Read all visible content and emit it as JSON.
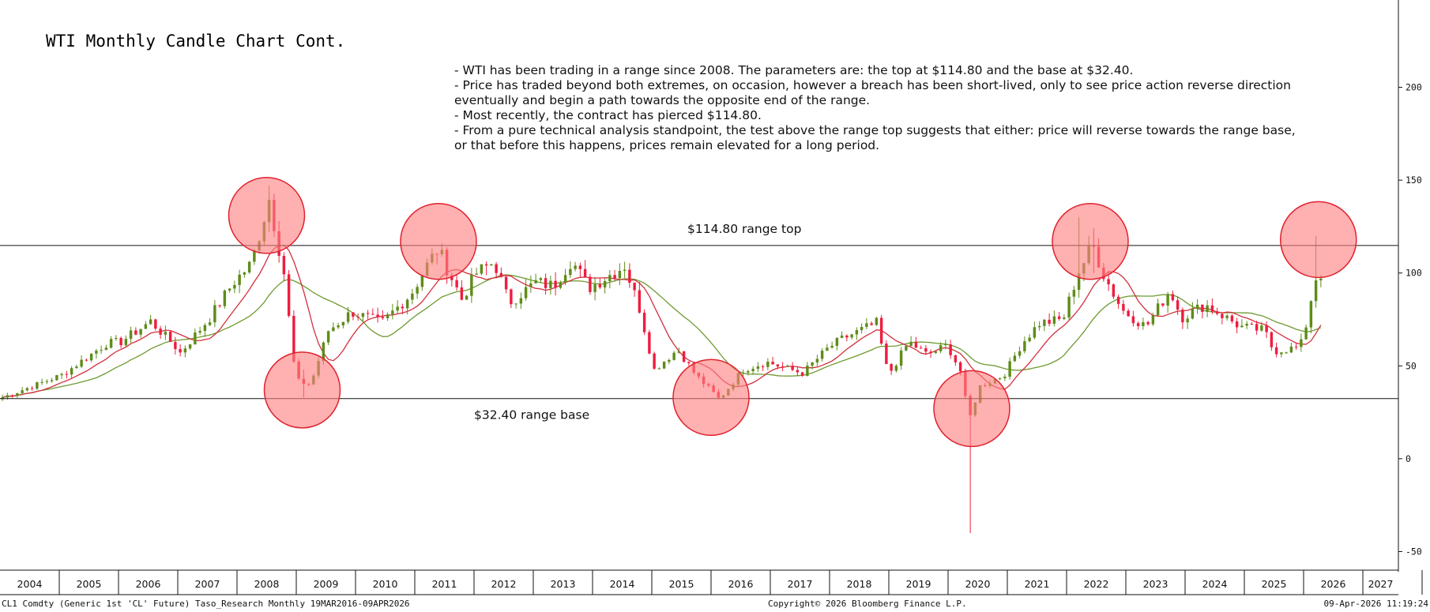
{
  "title": "WTI Monthly Candle Chart Cont.",
  "notes": [
    "- WTI has been trading in a range since 2008. The parameters are: the top at $114.80 and the base at $32.40.",
    "- Price has traded beyond both extremes, on occasion, however a breach has been short-lived, only to see price action reverse direction eventually and begin a path towards the opposite end of the range.",
    "- Most recently, the contract has pierced $114.80.",
    "- From a pure technical analysis standpoint, the test above the range top suggests that either: price will reverse towards the range base, or that before this happens, prices remain elevated for a long period."
  ],
  "footer": {
    "left": "CL1 Comdty (Generic 1st 'CL' Future) Taso_Research Monthly 19MAR2016-09APR2026",
    "center": "Copyright© 2026 Bloomberg Finance L.P.",
    "right": "09-Apr-2026 11:19:24"
  },
  "colors": {
    "up": "#5e8c19",
    "down": "#ee1d3f",
    "ma_fast": "#d2303e",
    "ma_slow": "#6f9a31",
    "circle_fill": "#ff7f7f",
    "circle_stroke": "#e0222f"
  },
  "chart_data": {
    "type": "candlestick",
    "y_ticks": [
      200,
      150,
      100,
      50,
      0,
      -50
    ],
    "ylim": [
      -60,
      247
    ],
    "x_years": [
      "2004",
      "2005",
      "2006",
      "2007",
      "2008",
      "2009",
      "2010",
      "2011",
      "2012",
      "2013",
      "2014",
      "2015",
      "2016",
      "2017",
      "2018",
      "2019",
      "2020",
      "2021",
      "2022",
      "2023",
      "2024",
      "2025",
      "2026",
      "2027"
    ],
    "xlim": [
      2004.0,
      2027.6
    ],
    "levels": [
      {
        "value": 114.8,
        "label": "$114.80 range top"
      },
      {
        "value": 32.4,
        "label": "$32.40 range base"
      }
    ],
    "highlights": [
      {
        "x": 2008.5,
        "y": 131
      },
      {
        "x": 2009.1,
        "y": 37
      },
      {
        "x": 2011.4,
        "y": 117
      },
      {
        "x": 2016.0,
        "y": 33
      },
      {
        "x": 2020.4,
        "y": 27
      },
      {
        "x": 2022.4,
        "y": 117
      },
      {
        "x": 2026.25,
        "y": 118
      }
    ],
    "anchors": [
      [
        2004.0,
        33
      ],
      [
        2004.5,
        39
      ],
      [
        2005.0,
        45
      ],
      [
        2005.75,
        62
      ],
      [
        2006.0,
        63
      ],
      [
        2006.5,
        74
      ],
      [
        2006.9,
        61
      ],
      [
        2007.0,
        57
      ],
      [
        2007.5,
        76
      ],
      [
        2007.9,
        95
      ],
      [
        2008.2,
        105
      ],
      [
        2008.5,
        140
      ],
      [
        2008.75,
        100
      ],
      [
        2008.95,
        42
      ],
      [
        2009.2,
        40
      ],
      [
        2009.5,
        69
      ],
      [
        2009.9,
        79
      ],
      [
        2010.4,
        73
      ],
      [
        2010.9,
        89
      ],
      [
        2011.2,
        106
      ],
      [
        2011.35,
        113
      ],
      [
        2011.75,
        86
      ],
      [
        2012.0,
        100
      ],
      [
        2012.3,
        106
      ],
      [
        2012.55,
        84
      ],
      [
        2013.0,
        95
      ],
      [
        2013.3,
        93
      ],
      [
        2013.6,
        107
      ],
      [
        2013.9,
        92
      ],
      [
        2014.5,
        104
      ],
      [
        2014.75,
        81
      ],
      [
        2015.0,
        48
      ],
      [
        2015.4,
        59
      ],
      [
        2015.7,
        45
      ],
      [
        2015.95,
        37
      ],
      [
        2016.1,
        32
      ],
      [
        2016.5,
        48
      ],
      [
        2016.9,
        52
      ],
      [
        2017.5,
        46
      ],
      [
        2017.95,
        60
      ],
      [
        2018.2,
        65
      ],
      [
        2018.75,
        73
      ],
      [
        2018.95,
        45
      ],
      [
        2019.3,
        63
      ],
      [
        2019.6,
        56
      ],
      [
        2019.95,
        61
      ],
      [
        2020.2,
        45
      ],
      [
        2020.3,
        20
      ],
      [
        2020.5,
        39
      ],
      [
        2020.9,
        45
      ],
      [
        2021.2,
        62
      ],
      [
        2021.5,
        73
      ],
      [
        2021.9,
        75
      ],
      [
        2022.15,
        100
      ],
      [
        2022.4,
        115
      ],
      [
        2022.6,
        98
      ],
      [
        2022.9,
        80
      ],
      [
        2023.3,
        71
      ],
      [
        2023.7,
        91
      ],
      [
        2023.9,
        76
      ],
      [
        2024.3,
        83
      ],
      [
        2024.9,
        71
      ],
      [
        2025.3,
        69
      ],
      [
        2025.45,
        58
      ],
      [
        2025.9,
        60
      ],
      [
        2026.0,
        72
      ],
      [
        2026.15,
        97
      ],
      [
        2026.3,
        101
      ]
    ],
    "spikes": [
      {
        "x": 2008.5,
        "high": 147,
        "low": 128
      },
      {
        "x": 2009.1,
        "high": 48,
        "low": 33
      },
      {
        "x": 2020.3,
        "high": 33,
        "low": -40
      },
      {
        "x": 2022.2,
        "high": 130,
        "low": 90
      },
      {
        "x": 2022.4,
        "high": 124,
        "low": 100
      },
      {
        "x": 2026.2,
        "high": 120,
        "low": 88
      },
      {
        "x": 2026.3,
        "high": 118,
        "low": 92
      }
    ]
  }
}
